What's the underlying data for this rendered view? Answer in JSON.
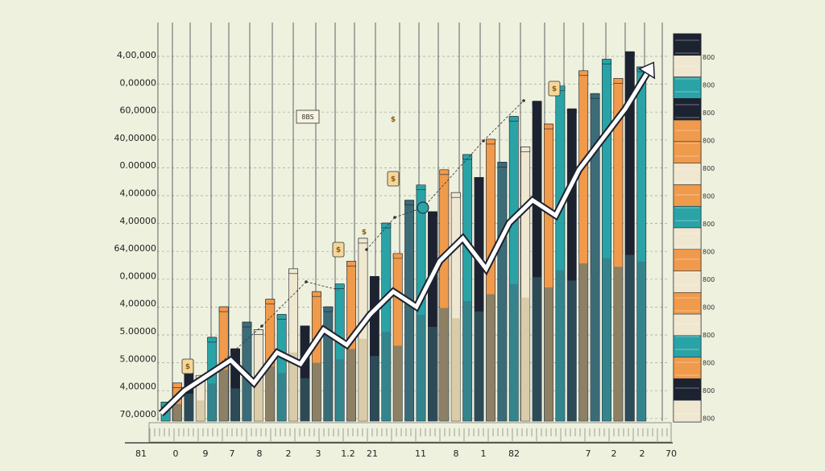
{
  "chart_data": {
    "type": "bar",
    "title": "",
    "xlabel": "",
    "ylabel": "",
    "grid": true,
    "legend_position": "right",
    "colors": {
      "teal": "#2aa3a6",
      "orange": "#f09a4c",
      "dark": "#1c2230",
      "slate": "#3c6c78",
      "cream": "#efe7cf",
      "tan": "#c8b48a",
      "background": "#eef1de",
      "arrow": "#ffffff"
    },
    "y_tick_labels": [
      "4,00,000",
      "0,00000",
      "60,0000",
      "40,00000",
      "0.00000",
      "4,00000",
      "4,00000",
      "64,00000",
      "0,00000",
      "4,00000",
      "5.00000",
      "5.00000",
      "4,00000",
      "70,0000"
    ],
    "x_tick_labels": [
      "81",
      "0",
      "9",
      "7",
      "8",
      "2",
      "3",
      "1.2",
      "21",
      "11",
      "8",
      "1",
      "82",
      "7",
      "2",
      "2",
      "70"
    ],
    "annotations": [
      "8BS",
      "$",
      "$",
      "$",
      "$",
      "$",
      "$"
    ],
    "legend_labels": [
      "800",
      "800",
      "800",
      "800",
      "800",
      "800",
      "800",
      "800",
      "800",
      "800",
      "800",
      "800",
      "800",
      "800"
    ],
    "bar_palette": [
      "teal",
      "orange",
      "dark",
      "slate",
      "cream",
      "tan"
    ],
    "bars": [
      {
        "v": 0.05,
        "c": "teal"
      },
      {
        "v": 0.1,
        "c": "orange"
      },
      {
        "v": 0.16,
        "c": "dark"
      },
      {
        "v": 0.12,
        "c": "cream"
      },
      {
        "v": 0.22,
        "c": "teal"
      },
      {
        "v": 0.3,
        "c": "orange"
      },
      {
        "v": 0.19,
        "c": "dark"
      },
      {
        "v": 0.26,
        "c": "slate"
      },
      {
        "v": 0.24,
        "c": "cream"
      },
      {
        "v": 0.32,
        "c": "orange"
      },
      {
        "v": 0.28,
        "c": "teal"
      },
      {
        "v": 0.4,
        "c": "cream"
      },
      {
        "v": 0.25,
        "c": "dark"
      },
      {
        "v": 0.34,
        "c": "orange"
      },
      {
        "v": 0.3,
        "c": "slate"
      },
      {
        "v": 0.36,
        "c": "teal"
      },
      {
        "v": 0.42,
        "c": "orange"
      },
      {
        "v": 0.48,
        "c": "cream"
      },
      {
        "v": 0.38,
        "c": "dark"
      },
      {
        "v": 0.52,
        "c": "teal"
      },
      {
        "v": 0.44,
        "c": "orange"
      },
      {
        "v": 0.58,
        "c": "slate"
      },
      {
        "v": 0.62,
        "c": "teal"
      },
      {
        "v": 0.55,
        "c": "dark"
      },
      {
        "v": 0.66,
        "c": "orange"
      },
      {
        "v": 0.6,
        "c": "cream"
      },
      {
        "v": 0.7,
        "c": "teal"
      },
      {
        "v": 0.64,
        "c": "dark"
      },
      {
        "v": 0.74,
        "c": "orange"
      },
      {
        "v": 0.68,
        "c": "slate"
      },
      {
        "v": 0.8,
        "c": "teal"
      },
      {
        "v": 0.72,
        "c": "cream"
      },
      {
        "v": 0.84,
        "c": "dark"
      },
      {
        "v": 0.78,
        "c": "orange"
      },
      {
        "v": 0.88,
        "c": "teal"
      },
      {
        "v": 0.82,
        "c": "dark"
      },
      {
        "v": 0.92,
        "c": "orange"
      },
      {
        "v": 0.86,
        "c": "slate"
      },
      {
        "v": 0.95,
        "c": "teal"
      },
      {
        "v": 0.9,
        "c": "orange"
      },
      {
        "v": 0.97,
        "c": "dark"
      },
      {
        "v": 0.93,
        "c": "teal"
      }
    ],
    "trend": [
      0.02,
      0.08,
      0.12,
      0.16,
      0.1,
      0.18,
      0.15,
      0.24,
      0.2,
      0.28,
      0.34,
      0.3,
      0.42,
      0.48,
      0.4,
      0.52,
      0.58,
      0.54,
      0.66,
      0.74,
      0.82,
      0.92
    ],
    "legend_swatches": [
      "dark",
      "cream",
      "teal",
      "dark",
      "orange",
      "orange",
      "cream",
      "orange",
      "teal",
      "cream",
      "orange",
      "cream",
      "orange",
      "cream",
      "teal",
      "orange",
      "dark",
      "cream"
    ]
  }
}
